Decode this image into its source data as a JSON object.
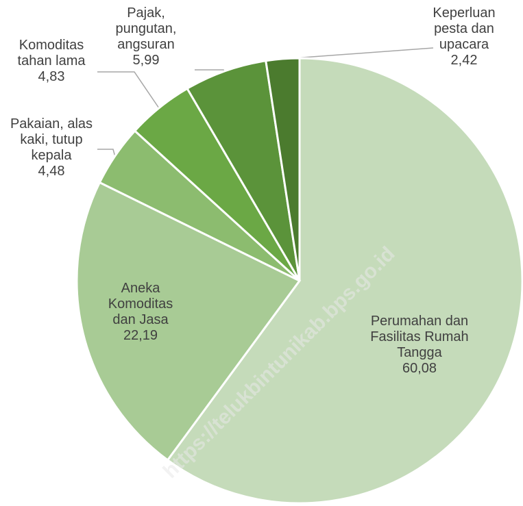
{
  "chart_data": {
    "type": "pie",
    "categories": [
      "Perumahan dan Fasilitas Rumah Tangga",
      "Aneka Komoditas dan Jasa",
      "Pakaian, alas kaki, tutup kepala",
      "Komoditas tahan lama",
      "Pajak, pungutan, angsuran",
      "Keperluan pesta dan upacara"
    ],
    "values": [
      60.08,
      22.19,
      4.48,
      4.83,
      5.99,
      2.42
    ],
    "value_labels": [
      "60,08",
      "22,19",
      "4,48",
      "4,83",
      "5,99",
      "2,42"
    ],
    "colors": [
      "#c5dbba",
      "#a8cb95",
      "#8cbc6f",
      "#6ba845",
      "#5b933a",
      "#4b7b2e"
    ],
    "watermark": "https://telukbintunikab.bps.go.id"
  }
}
